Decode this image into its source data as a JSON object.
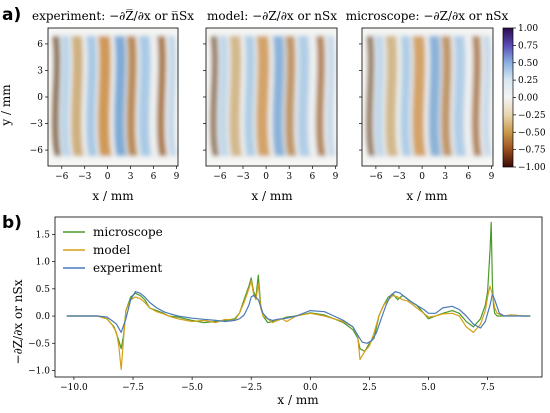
{
  "panel_a_label": "a)",
  "panel_b_label": "b)",
  "maps": {
    "titles": [
      "experiment: −∂Z̅/∂x or n̅Sx",
      "model: −∂Z/∂x or nSx",
      "microscope: −∂Z/∂x or nSx"
    ],
    "x_ticks": [
      "−6",
      "−3",
      "0",
      "3",
      "6",
      "9"
    ],
    "y_ticks": [
      "6",
      "3",
      "0",
      "−3",
      "−6"
    ],
    "xlabel": "x / mm",
    "ylabel": "y / mm"
  },
  "colorbar": {
    "ticks": [
      "1.00",
      "0.75",
      "0.50",
      "0.25",
      "0.00",
      "−0.25",
      "−0.50",
      "−0.75",
      "−1.00"
    ],
    "colors": [
      "#2d0a4a",
      "#5a4bb6",
      "#8ab0e0",
      "#d8e8f2",
      "#f4f4f4",
      "#e8d5b0",
      "#c89a4a",
      "#9a4e1e",
      "#3a0a06"
    ]
  },
  "chart_data": {
    "type": "line",
    "xlabel": "x / mm",
    "ylabel": "−∂Z/∂x or nSx",
    "xlim": [
      -10.8,
      9.8
    ],
    "ylim": [
      -1.12,
      1.82
    ],
    "x_ticks": [
      "−10.0",
      "−7.5",
      "−5.0",
      "−2.5",
      "0.0",
      "2.5",
      "5.0",
      "7.5"
    ],
    "y_ticks": [
      "1.5",
      "1.0",
      "0.5",
      "0.0",
      "−0.5",
      "−1.0"
    ],
    "legend_position": "top-left",
    "series": [
      {
        "name": "microscope",
        "color": "#4a9a2a",
        "x": [
          -10.3,
          -9.0,
          -8.6,
          -8.3,
          -8.1,
          -8.0,
          -7.9,
          -7.8,
          -7.6,
          -7.4,
          -7.2,
          -7.0,
          -6.8,
          -6.5,
          -6.2,
          -6.0,
          -5.6,
          -5.0,
          -4.5,
          -4.0,
          -3.6,
          -3.2,
          -3.0,
          -2.8,
          -2.6,
          -2.5,
          -2.4,
          -2.3,
          -2.2,
          -2.1,
          -2.0,
          -1.8,
          -1.6,
          -1.4,
          -1.2,
          -1.0,
          -0.6,
          0.0,
          0.6,
          1.0,
          1.4,
          1.8,
          2.0,
          2.1,
          2.3,
          2.5,
          2.7,
          2.9,
          3.1,
          3.3,
          3.5,
          3.7,
          3.9,
          4.1,
          4.3,
          4.5,
          4.8,
          5.0,
          5.3,
          5.6,
          6.0,
          6.3,
          6.6,
          6.9,
          7.2,
          7.4,
          7.5,
          7.6,
          7.65,
          7.7,
          7.75,
          7.8,
          7.9,
          8.2,
          8.5,
          9.0,
          9.3
        ],
        "values": [
          0.0,
          0.0,
          -0.05,
          -0.2,
          -0.45,
          -0.6,
          -0.35,
          0.1,
          0.35,
          0.42,
          0.38,
          0.3,
          0.15,
          0.1,
          0.05,
          0.0,
          -0.02,
          -0.08,
          -0.12,
          -0.1,
          -0.08,
          -0.05,
          0.05,
          0.3,
          0.55,
          0.7,
          0.45,
          0.35,
          0.75,
          0.2,
          0.0,
          -0.12,
          -0.1,
          -0.08,
          -0.05,
          -0.02,
          0.0,
          0.06,
          0.02,
          -0.05,
          -0.12,
          -0.25,
          -0.4,
          -0.6,
          -0.65,
          -0.5,
          -0.4,
          0.0,
          0.2,
          0.35,
          0.4,
          0.3,
          0.38,
          0.32,
          0.25,
          0.2,
          0.05,
          -0.05,
          0.0,
          0.05,
          0.1,
          0.05,
          -0.1,
          -0.2,
          -0.05,
          0.2,
          0.45,
          1.2,
          1.72,
          0.6,
          0.2,
          0.05,
          0.0,
          0.0,
          0.02,
          0.0,
          0.0
        ]
      },
      {
        "name": "model",
        "color": "#d4a017",
        "x": [
          -10.3,
          -9.0,
          -8.6,
          -8.4,
          -8.2,
          -8.1,
          -8.0,
          -7.95,
          -7.9,
          -7.8,
          -7.6,
          -7.4,
          -7.2,
          -7.0,
          -6.8,
          -6.5,
          -6.2,
          -6.0,
          -5.6,
          -5.0,
          -4.5,
          -4.0,
          -3.6,
          -3.2,
          -3.0,
          -2.8,
          -2.6,
          -2.5,
          -2.4,
          -2.3,
          -2.2,
          -2.1,
          -2.0,
          -1.8,
          -1.6,
          -1.4,
          -1.2,
          -1.0,
          -0.6,
          0.0,
          0.6,
          1.0,
          1.4,
          1.8,
          2.0,
          2.1,
          2.3,
          2.5,
          2.7,
          2.9,
          3.1,
          3.3,
          3.5,
          3.7,
          3.9,
          4.1,
          4.3,
          4.5,
          4.8,
          5.0,
          5.3,
          5.6,
          6.0,
          6.3,
          6.6,
          6.9,
          7.2,
          7.4,
          7.5,
          7.6,
          7.7,
          7.8,
          7.9,
          8.2,
          8.5,
          9.0,
          9.3
        ],
        "values": [
          0.0,
          0.0,
          -0.05,
          -0.15,
          -0.3,
          -0.55,
          -0.98,
          -0.7,
          -0.4,
          0.1,
          0.3,
          0.35,
          0.32,
          0.25,
          0.15,
          0.08,
          0.04,
          0.0,
          -0.05,
          -0.1,
          -0.08,
          -0.12,
          -0.06,
          -0.08,
          0.05,
          0.25,
          0.5,
          0.65,
          0.4,
          0.3,
          0.6,
          0.15,
          0.0,
          -0.05,
          -0.12,
          -0.08,
          -0.05,
          -0.1,
          0.0,
          0.05,
          0.0,
          -0.05,
          -0.1,
          -0.2,
          -0.35,
          -0.8,
          -0.65,
          -0.55,
          -0.3,
          0.0,
          0.2,
          0.3,
          0.38,
          0.35,
          0.3,
          0.28,
          0.22,
          0.15,
          0.05,
          -0.02,
          0.0,
          0.04,
          0.05,
          0.0,
          -0.2,
          -0.3,
          -0.15,
          0.1,
          0.35,
          0.55,
          0.4,
          0.15,
          0.05,
          0.0,
          0.02,
          0.0,
          0.0
        ]
      },
      {
        "name": "experiment",
        "color": "#4a7ab8",
        "x": [
          -10.3,
          -9.0,
          -8.6,
          -8.4,
          -8.2,
          -8.0,
          -7.8,
          -7.6,
          -7.4,
          -7.2,
          -7.0,
          -6.8,
          -6.5,
          -6.2,
          -6.0,
          -5.6,
          -5.0,
          -4.5,
          -4.0,
          -3.6,
          -3.2,
          -3.0,
          -2.8,
          -2.6,
          -2.5,
          -2.4,
          -2.2,
          -2.0,
          -1.8,
          -1.6,
          -1.4,
          -1.0,
          -0.6,
          0.0,
          0.6,
          1.0,
          1.4,
          1.8,
          2.0,
          2.2,
          2.4,
          2.6,
          2.8,
          3.0,
          3.2,
          3.4,
          3.6,
          3.8,
          4.0,
          4.2,
          4.5,
          4.8,
          5.0,
          5.3,
          5.6,
          6.0,
          6.3,
          6.6,
          6.9,
          7.2,
          7.4,
          7.6,
          7.7,
          7.8,
          8.0,
          8.2,
          8.5,
          9.0,
          9.3
        ],
        "values": [
          0.0,
          0.0,
          -0.02,
          -0.08,
          -0.15,
          -0.3,
          -0.05,
          0.3,
          0.45,
          0.42,
          0.35,
          0.25,
          0.15,
          0.08,
          0.05,
          0.0,
          -0.04,
          -0.06,
          -0.08,
          -0.1,
          -0.08,
          -0.05,
          0.02,
          0.2,
          0.35,
          0.38,
          0.3,
          0.05,
          -0.05,
          -0.08,
          -0.06,
          -0.04,
          0.0,
          0.1,
          0.08,
          0.0,
          -0.08,
          -0.2,
          -0.35,
          -0.48,
          -0.5,
          -0.45,
          -0.3,
          -0.05,
          0.2,
          0.38,
          0.45,
          0.42,
          0.35,
          0.28,
          0.2,
          0.12,
          0.05,
          0.05,
          0.15,
          0.18,
          0.12,
          0.0,
          -0.15,
          -0.22,
          -0.1,
          0.2,
          0.4,
          0.3,
          0.05,
          0.0,
          0.0,
          0.0,
          0.0
        ]
      }
    ]
  }
}
